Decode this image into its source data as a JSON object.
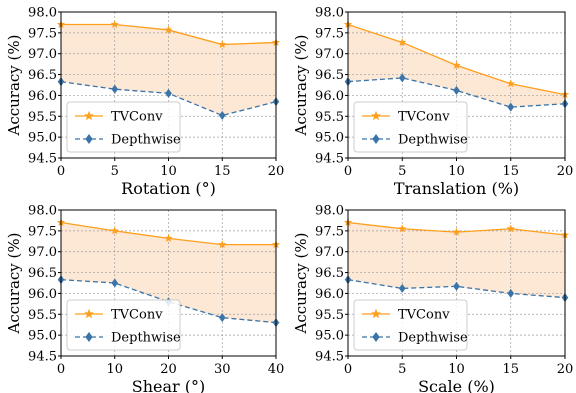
{
  "chart_data": [
    {
      "type": "line",
      "x": [
        0,
        5,
        10,
        15,
        20
      ],
      "xticks": [
        "0",
        "5",
        "10",
        "15",
        "20"
      ],
      "xlim": [
        0,
        20
      ],
      "ylim": [
        94.5,
        98.0
      ],
      "yticks": [
        "94.5",
        "95.0",
        "95.5",
        "96.0",
        "96.5",
        "97.0",
        "97.5",
        "98.0"
      ],
      "xlabel": "Rotation (°)",
      "ylabel": "Accuracy (%)",
      "grid": true,
      "legend": "lower-left",
      "fill_between": true,
      "series": [
        {
          "name": "TVConv",
          "values": [
            97.7,
            97.7,
            97.57,
            97.22,
            97.27
          ]
        },
        {
          "name": "Depthwise",
          "values": [
            96.33,
            96.15,
            96.05,
            95.52,
            95.85
          ]
        }
      ]
    },
    {
      "type": "line",
      "x": [
        0,
        5,
        10,
        15,
        20
      ],
      "xticks": [
        "0",
        "5",
        "10",
        "15",
        "20"
      ],
      "xlim": [
        0,
        20
      ],
      "ylim": [
        94.5,
        98.0
      ],
      "yticks": [
        "94.5",
        "95.0",
        "95.5",
        "96.0",
        "96.5",
        "97.0",
        "97.5",
        "98.0"
      ],
      "xlabel": "Translation (%)",
      "ylabel": "Accuracy (%)",
      "grid": true,
      "legend": "lower-left",
      "fill_between": true,
      "series": [
        {
          "name": "TVConv",
          "values": [
            97.7,
            97.27,
            96.72,
            96.28,
            96.02
          ]
        },
        {
          "name": "Depthwise",
          "values": [
            96.33,
            96.42,
            96.12,
            95.72,
            95.8
          ]
        }
      ]
    },
    {
      "type": "line",
      "x": [
        0,
        10,
        20,
        30,
        40
      ],
      "xticks": [
        "0",
        "10",
        "20",
        "30",
        "40"
      ],
      "xlim": [
        0,
        40
      ],
      "ylim": [
        94.5,
        98.0
      ],
      "yticks": [
        "94.5",
        "95.0",
        "95.5",
        "96.0",
        "96.5",
        "97.0",
        "97.5",
        "98.0"
      ],
      "xlabel": "Shear (°)",
      "ylabel": "Accuracy (%)",
      "grid": true,
      "legend": "lower-left",
      "fill_between": true,
      "series": [
        {
          "name": "TVConv",
          "values": [
            97.7,
            97.5,
            97.32,
            97.17,
            97.17
          ]
        },
        {
          "name": "Depthwise",
          "values": [
            96.33,
            96.25,
            95.8,
            95.42,
            95.3
          ]
        }
      ]
    },
    {
      "type": "line",
      "x": [
        0,
        5,
        10,
        15,
        20
      ],
      "xticks": [
        "0",
        "5",
        "10",
        "15",
        "20"
      ],
      "xlim": [
        0,
        20
      ],
      "ylim": [
        94.5,
        98.0
      ],
      "yticks": [
        "94.5",
        "95.0",
        "95.5",
        "96.0",
        "96.5",
        "97.0",
        "97.5",
        "98.0"
      ],
      "xlabel": "Scale (%)",
      "ylabel": "Accuracy (%)",
      "grid": true,
      "legend": "lower-left",
      "fill_between": true,
      "series": [
        {
          "name": "TVConv",
          "values": [
            97.7,
            97.55,
            97.47,
            97.55,
            97.4
          ]
        },
        {
          "name": "Depthwise",
          "values": [
            96.33,
            96.12,
            96.17,
            96.0,
            95.9
          ]
        }
      ]
    }
  ],
  "colors": {
    "tvconv": "#ff9f1c",
    "depthwise": "#3a74a8",
    "fill": "#fde7d5",
    "grid": "#9e9e9e"
  }
}
